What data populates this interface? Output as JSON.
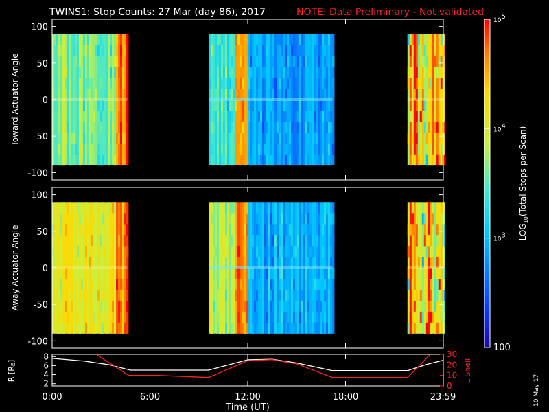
{
  "title": "TWINS1: Stop Counts: 27 Mar (day  86), 2017",
  "note": "NOTE: Data Preliminary - Not validated",
  "footer_date": "10 May 17",
  "colors": {
    "accent_red": "#ff2020",
    "white_line": "#ffffff"
  },
  "chart_data": [
    {
      "type": "heatmap",
      "ylabel": "Toward Actuator Angle",
      "ylim": [
        -110,
        110
      ],
      "yticks": [
        "100",
        "50",
        "0",
        "-50",
        "-100"
      ],
      "ytick_values": [
        100,
        50,
        0,
        -50,
        -100
      ],
      "data_blocks_hours": [
        [
          0.0,
          4.6
        ],
        [
          9.6,
          17.2
        ],
        [
          21.8,
          24.0
        ]
      ],
      "angle_range": [
        -90,
        90
      ]
    },
    {
      "type": "heatmap",
      "ylabel": "Away Actuator Angle",
      "ylim": [
        -110,
        110
      ],
      "yticks": [
        "100",
        "50",
        "0",
        "-50",
        "-100"
      ],
      "ytick_values": [
        100,
        50,
        0,
        -50,
        -100
      ],
      "data_blocks_hours": [
        [
          0.0,
          4.6
        ],
        [
          9.6,
          17.2
        ],
        [
          21.8,
          24.0
        ]
      ],
      "angle_range": [
        -90,
        90
      ]
    },
    {
      "type": "line",
      "ylabel": "R [R",
      "ylabel_sub": "E",
      "ylabel_end": "]",
      "ylabel_right": "L Shell",
      "yticks_left": [
        "8",
        "6",
        "4",
        "2"
      ],
      "yticks_left_values": [
        8,
        6,
        4,
        2
      ],
      "yticks_right": [
        "30",
        "20",
        "10",
        "0"
      ],
      "yticks_right_values": [
        30,
        20,
        10,
        0
      ],
      "ylim_left": [
        1.5,
        8.5
      ],
      "ylim_right": [
        0,
        30
      ],
      "xlim": [
        0,
        24
      ],
      "xticks": [
        "0:00",
        "6:00",
        "12:00",
        "18:00",
        "23:59"
      ],
      "xtick_values": [
        0,
        6,
        12,
        18,
        23.98
      ],
      "xlabel": "Time (UT)",
      "series": [
        {
          "color": "#ffffff",
          "x": [
            0,
            2,
            3.5,
            4.8,
            9.6,
            12,
            13.5,
            15,
            17.2,
            21.8,
            23,
            24
          ],
          "y": [
            7.6,
            7.0,
            6.2,
            5.0,
            5.0,
            7.3,
            7.4,
            6.6,
            4.9,
            4.9,
            6.3,
            7.2
          ]
        },
        {
          "color": "#ff2020",
          "x": [
            2.7,
            4.7,
            6.5,
            9.6,
            12,
            13.5,
            15,
            17.2,
            21.8,
            23.2
          ],
          "y": [
            30,
            10,
            10,
            8,
            24,
            25,
            21,
            8,
            8,
            30
          ]
        }
      ]
    }
  ],
  "colorbar": {
    "label_pre": "LOG",
    "label_sub": "10",
    "label_post": "(Total Stops per Scan)",
    "ticks": [
      {
        "base": "10",
        "exp": "5",
        "value": 100000
      },
      {
        "base": "10",
        "exp": "4",
        "value": 10000
      },
      {
        "base": "10",
        "exp": "3",
        "value": 1000
      },
      {
        "base": "100",
        "exp": "",
        "value": 100
      }
    ]
  }
}
